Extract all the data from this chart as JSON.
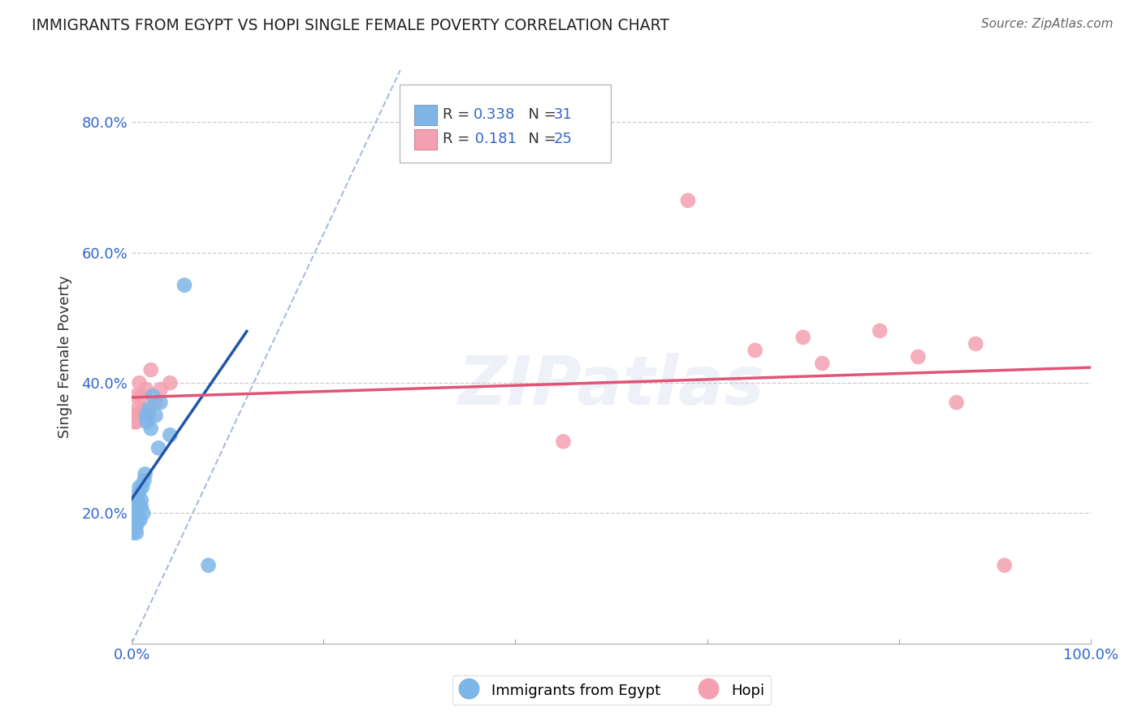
{
  "title": "IMMIGRANTS FROM EGYPT VS HOPI SINGLE FEMALE POVERTY CORRELATION CHART",
  "source": "Source: ZipAtlas.com",
  "ylabel": "Single Female Poverty",
  "xlim": [
    0.0,
    1.0
  ],
  "ylim": [
    0.0,
    0.88
  ],
  "yticks": [
    0.2,
    0.4,
    0.6,
    0.8
  ],
  "ytick_labels": [
    "20.0%",
    "40.0%",
    "60.0%",
    "80.0%"
  ],
  "xticks": [
    0.0,
    0.2,
    0.4,
    0.6,
    0.8,
    1.0
  ],
  "xtick_labels": [
    "0.0%",
    "",
    "",
    "",
    "",
    "100.0%"
  ],
  "egypt_color": "#7eb6e8",
  "hopi_color": "#f4a0b0",
  "egypt_line_color": "#2255aa",
  "hopi_line_color": "#e05575",
  "diag_line_color": "#aabbdd",
  "legend_R_egypt": "0.338",
  "legend_N_egypt": "31",
  "legend_R_hopi": "0.181",
  "legend_N_hopi": "25",
  "egypt_x": [
    0.002,
    0.003,
    0.003,
    0.004,
    0.004,
    0.005,
    0.005,
    0.005,
    0.006,
    0.006,
    0.007,
    0.007,
    0.008,
    0.009,
    0.01,
    0.01,
    0.011,
    0.012,
    0.013,
    0.014,
    0.015,
    0.016,
    0.018,
    0.02,
    0.022,
    0.025,
    0.028,
    0.03,
    0.04,
    0.055,
    0.08
  ],
  "egypt_y": [
    0.17,
    0.18,
    0.2,
    0.19,
    0.21,
    0.17,
    0.18,
    0.2,
    0.22,
    0.19,
    0.21,
    0.23,
    0.24,
    0.19,
    0.22,
    0.21,
    0.24,
    0.2,
    0.25,
    0.26,
    0.35,
    0.34,
    0.36,
    0.33,
    0.38,
    0.35,
    0.3,
    0.37,
    0.32,
    0.55,
    0.12
  ],
  "hopi_x": [
    0.002,
    0.003,
    0.004,
    0.005,
    0.006,
    0.007,
    0.008,
    0.01,
    0.012,
    0.015,
    0.018,
    0.02,
    0.025,
    0.03,
    0.04,
    0.45,
    0.58,
    0.65,
    0.7,
    0.72,
    0.78,
    0.82,
    0.86,
    0.88,
    0.91
  ],
  "hopi_y": [
    0.34,
    0.35,
    0.38,
    0.34,
    0.36,
    0.35,
    0.4,
    0.38,
    0.36,
    0.39,
    0.35,
    0.42,
    0.37,
    0.39,
    0.4,
    0.31,
    0.68,
    0.45,
    0.47,
    0.43,
    0.48,
    0.44,
    0.37,
    0.46,
    0.12
  ]
}
